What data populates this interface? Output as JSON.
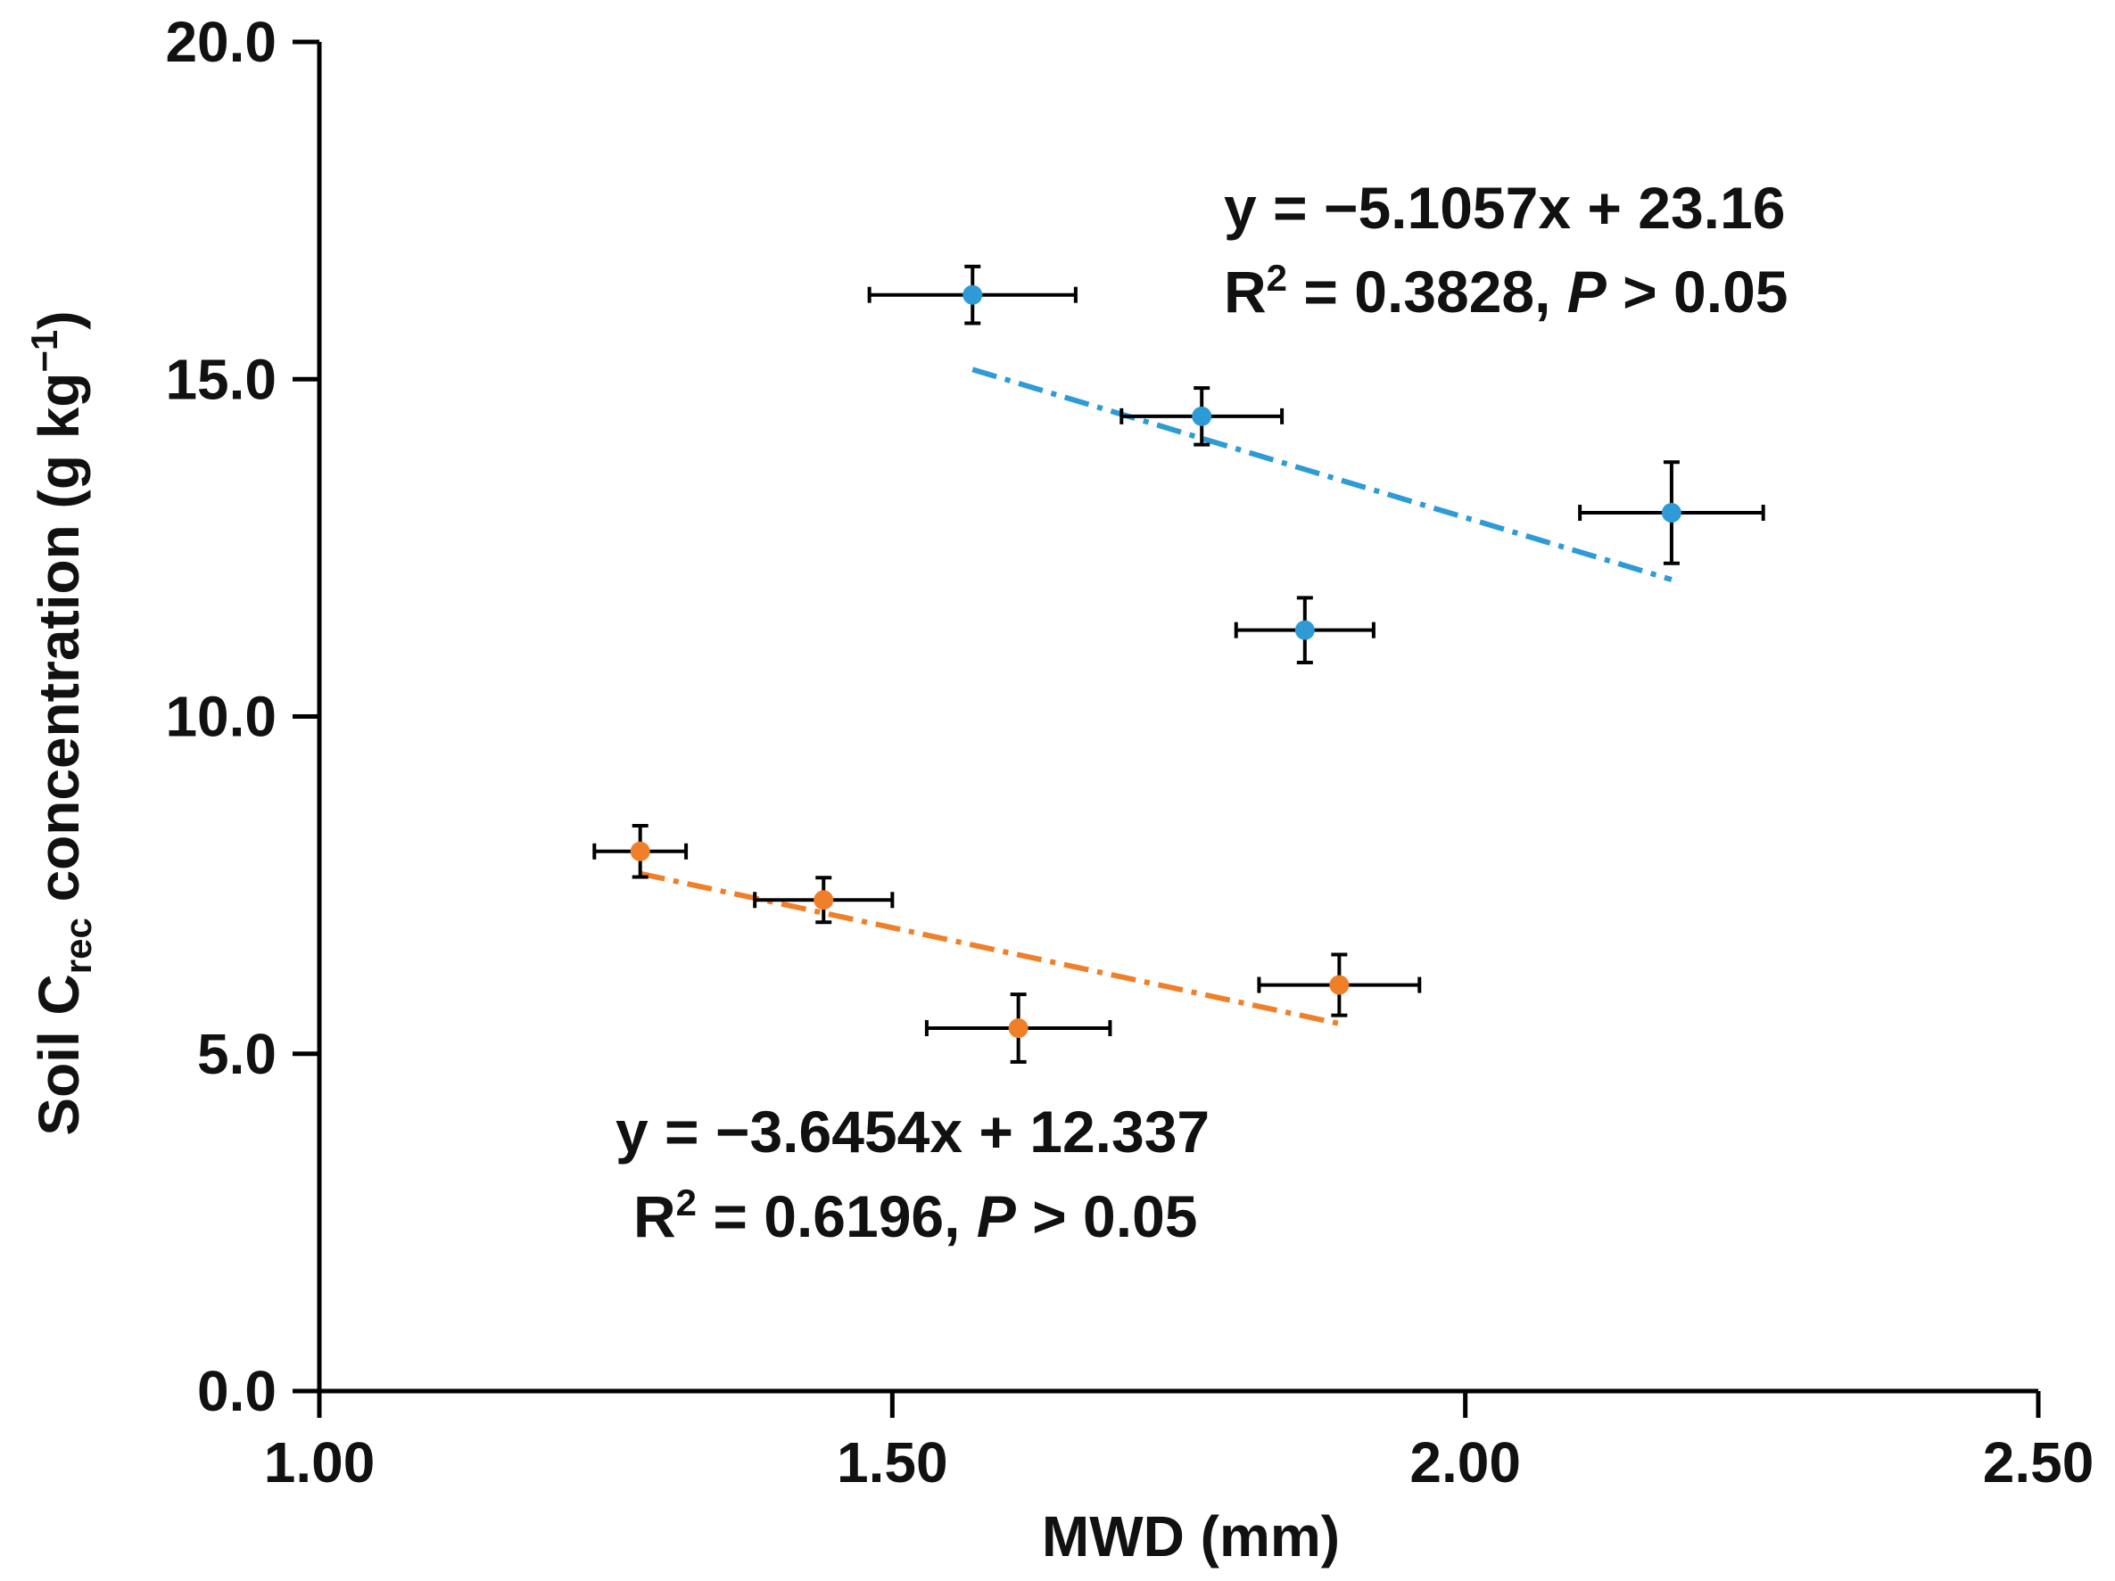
{
  "chart_data": {
    "type": "scatter",
    "title": "",
    "xlabel": "MWD (mm)",
    "ylabel": {
      "prefix": "Soil C",
      "subscript": "rec",
      "suffix": " concentration (g kg",
      "superscript": "−1",
      "close": ")"
    },
    "xlim": [
      1.0,
      2.5
    ],
    "ylim": [
      0.0,
      20.0
    ],
    "xticks": [
      1.0,
      1.5,
      2.0,
      2.5
    ],
    "xtick_labels": [
      "1.00",
      "1.50",
      "2.00",
      "2.50"
    ],
    "yticks": [
      0.0,
      5.0,
      10.0,
      15.0,
      20.0
    ],
    "ytick_labels": [
      "0.0",
      "5.0",
      "10.0",
      "15.0",
      "20.0"
    ],
    "grid": false,
    "series": [
      {
        "name": "blue",
        "color": "#2e9bd6",
        "points": [
          {
            "x": 1.57,
            "y": 16.25,
            "xerr": 0.09,
            "yerr": 0.42
          },
          {
            "x": 1.77,
            "y": 14.45,
            "xerr": 0.07,
            "yerr": 0.42
          },
          {
            "x": 1.86,
            "y": 11.28,
            "xerr": 0.06,
            "yerr": 0.48
          },
          {
            "x": 2.18,
            "y": 13.02,
            "xerr": 0.08,
            "yerr": 0.75
          }
        ],
        "trendline": {
          "slope": -5.1057,
          "intercept": 23.16,
          "x_start": 1.57,
          "x_end": 2.18
        },
        "equation": "y = −5.1057x + 23.16",
        "r2_label": "R",
        "r2_sup": "2",
        "r2_value": " = 0.3828, ",
        "p_label": "P",
        "p_value": " > 0.05"
      },
      {
        "name": "orange",
        "color": "#f07f2a",
        "points": [
          {
            "x": 1.28,
            "y": 8.0,
            "xerr": 0.04,
            "yerr": 0.38
          },
          {
            "x": 1.44,
            "y": 7.28,
            "xerr": 0.06,
            "yerr": 0.33
          },
          {
            "x": 1.61,
            "y": 5.38,
            "xerr": 0.08,
            "yerr": 0.5
          },
          {
            "x": 1.89,
            "y": 6.02,
            "xerr": 0.07,
            "yerr": 0.45
          }
        ],
        "trendline": {
          "slope": -3.6454,
          "intercept": 12.337,
          "x_start": 1.28,
          "x_end": 1.89
        },
        "equation": "y = −3.6454x + 12.337",
        "r2_label": "R",
        "r2_sup": "2",
        "r2_value": " = 0.6196, ",
        "p_label": "P",
        "p_value": " > 0.05"
      }
    ]
  }
}
